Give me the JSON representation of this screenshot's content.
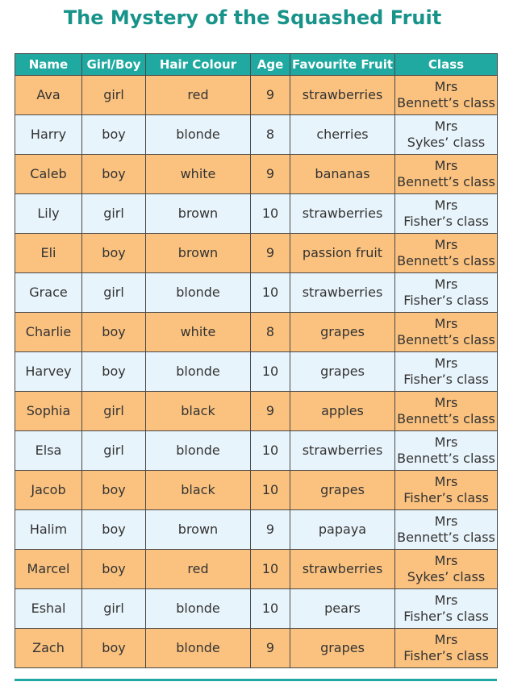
{
  "title": "The Mystery of the Squashed Fruit",
  "table": {
    "header": [
      "Name",
      "Girl/Boy",
      "Hair Colour",
      "Age",
      "Favourite Fruit",
      "Class"
    ],
    "rows": [
      [
        "Ava",
        "girl",
        "red",
        "9",
        "strawberries",
        [
          "Mrs",
          "Bennett’s class"
        ]
      ],
      [
        "Harry",
        "boy",
        "blonde",
        "8",
        "cherries",
        [
          "Mrs",
          "Sykes’ class"
        ]
      ],
      [
        "Caleb",
        "boy",
        "white",
        "9",
        "bananas",
        [
          "Mrs",
          "Bennett’s class"
        ]
      ],
      [
        "Lily",
        "girl",
        "brown",
        "10",
        "strawberries",
        [
          "Mrs",
          "Fisher’s class"
        ]
      ],
      [
        "Eli",
        "boy",
        "brown",
        "9",
        "passion fruit",
        [
          "Mrs",
          "Bennett’s class"
        ]
      ],
      [
        "Grace",
        "girl",
        "blonde",
        "10",
        "strawberries",
        [
          "Mrs",
          "Fisher’s class"
        ]
      ],
      [
        "Charlie",
        "boy",
        "white",
        "8",
        "grapes",
        [
          "Mrs",
          "Bennett’s class"
        ]
      ],
      [
        "Harvey",
        "boy",
        "blonde",
        "10",
        "grapes",
        [
          "Mrs",
          "Fisher’s class"
        ]
      ],
      [
        "Sophia",
        "girl",
        "black",
        "9",
        "apples",
        [
          "Mrs",
          "Bennett’s class"
        ]
      ],
      [
        "Elsa",
        "girl",
        "blonde",
        "10",
        "strawberries",
        [
          "Mrs",
          "Bennett’s class"
        ]
      ],
      [
        "Jacob",
        "boy",
        "black",
        "10",
        "grapes",
        [
          "Mrs",
          "Fisher’s class"
        ]
      ],
      [
        "Halim",
        "boy",
        "brown",
        "9",
        "papaya",
        [
          "Mrs",
          "Bennett’s class"
        ]
      ],
      [
        "Marcel",
        "boy",
        "red",
        "10",
        "strawberries",
        [
          "Mrs",
          "Sykes’ class"
        ]
      ],
      [
        "Eshal",
        "girl",
        "blonde",
        "10",
        "pears",
        [
          "Mrs",
          "Fisher’s class"
        ]
      ],
      [
        "Zach",
        "boy",
        "blonde",
        "9",
        "grapes",
        [
          "Mrs",
          "Fisher’s class"
        ]
      ]
    ]
  }
}
